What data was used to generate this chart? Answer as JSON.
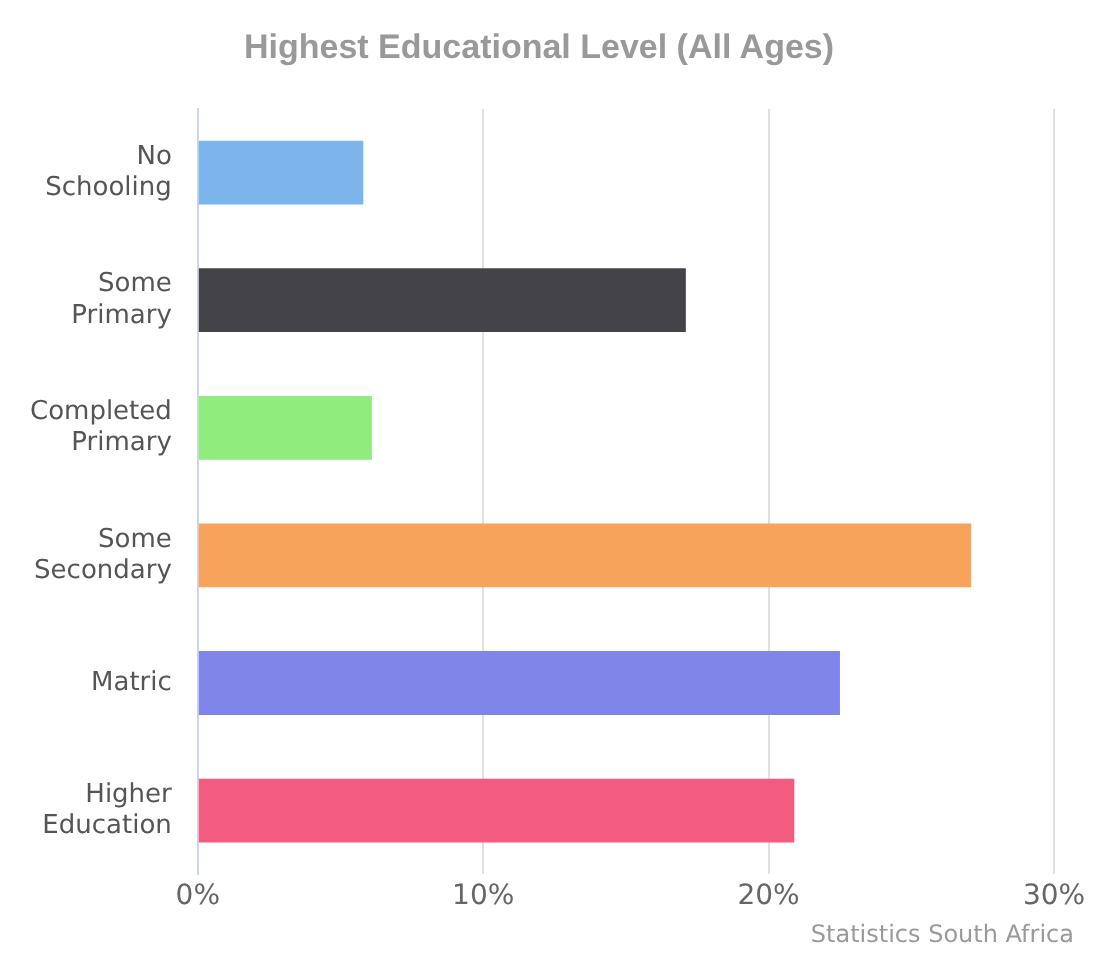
{
  "chart_data": {
    "type": "bar",
    "orientation": "horizontal",
    "title": "Highest Educational Level (All Ages)",
    "categories": [
      "No Schooling",
      "Some Primary",
      "Completed Primary",
      "Some Secondary",
      "Matric",
      "Higher Education"
    ],
    "values": [
      5.8,
      17.1,
      6.1,
      27.1,
      22.5,
      20.9
    ],
    "colors": [
      "#7cb5ec",
      "#434348",
      "#90ed7d",
      "#f7a35c",
      "#8085e9",
      "#f15c80"
    ],
    "xlim": [
      0,
      30
    ],
    "xticks": [
      {
        "value": 0,
        "label": "0%"
      },
      {
        "value": 10,
        "label": "10%"
      },
      {
        "value": 20,
        "label": "20%"
      },
      {
        "value": 30,
        "label": "30%"
      }
    ],
    "grid": "x",
    "legend": false,
    "annotations": [
      "Statistics South Africa"
    ]
  }
}
